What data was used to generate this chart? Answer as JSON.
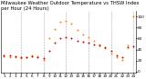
{
  "title": "Milwaukee Weather Outdoor Temperature vs THSW Index per Hour (24 Hours)",
  "background_color": "#ffffff",
  "xlim": [
    0.5,
    24.5
  ],
  "ylim": [
    -2,
    110
  ],
  "yticks": [
    0,
    20,
    40,
    60,
    80,
    100
  ],
  "ytick_labels": [
    "0",
    "20",
    "40",
    "60",
    "80",
    "100"
  ],
  "xticks": [
    1,
    2,
    3,
    4,
    5,
    6,
    7,
    8,
    9,
    10,
    11,
    12,
    13,
    14,
    15,
    16,
    17,
    18,
    19,
    20,
    21,
    22,
    23,
    24
  ],
  "xtick_labels": [
    "1",
    "2",
    "3",
    "4",
    "5",
    "6",
    "7",
    "8",
    "9",
    "10",
    "11",
    "12",
    "13",
    "14",
    "15",
    "16",
    "17",
    "18",
    "19",
    "20",
    "21",
    "22",
    "23",
    "24"
  ],
  "vgrid_positions": [
    4,
    8,
    12,
    16,
    20,
    24
  ],
  "temp_x": [
    1,
    2,
    3,
    4,
    5,
    6,
    7,
    8,
    9,
    10,
    11,
    12,
    13,
    14,
    15,
    16,
    17,
    18,
    19,
    20,
    21,
    22,
    23,
    24
  ],
  "temp_y": [
    30,
    29,
    28,
    27,
    27,
    28,
    26,
    24,
    38,
    52,
    60,
    62,
    60,
    56,
    54,
    52,
    50,
    48,
    44,
    38,
    30,
    26,
    44,
    46
  ],
  "thsw_x": [
    1,
    2,
    3,
    4,
    5,
    6,
    7,
    8,
    9,
    10,
    11,
    12,
    13,
    14,
    15,
    16,
    17,
    18,
    19,
    20,
    21,
    22,
    23,
    24
  ],
  "thsw_y": [
    28,
    27,
    26,
    25,
    26,
    30,
    28,
    22,
    60,
    78,
    90,
    92,
    88,
    76,
    68,
    62,
    56,
    50,
    42,
    32,
    26,
    22,
    48,
    100
  ],
  "temp_color": "#cc0000",
  "thsw_color": "#ff8800",
  "marker_size": 2,
  "title_fontsize": 3.8,
  "tick_fontsize": 3.0,
  "grid_color": "#aaaaaa",
  "grid_linestyle": "--",
  "grid_linewidth": 0.4
}
